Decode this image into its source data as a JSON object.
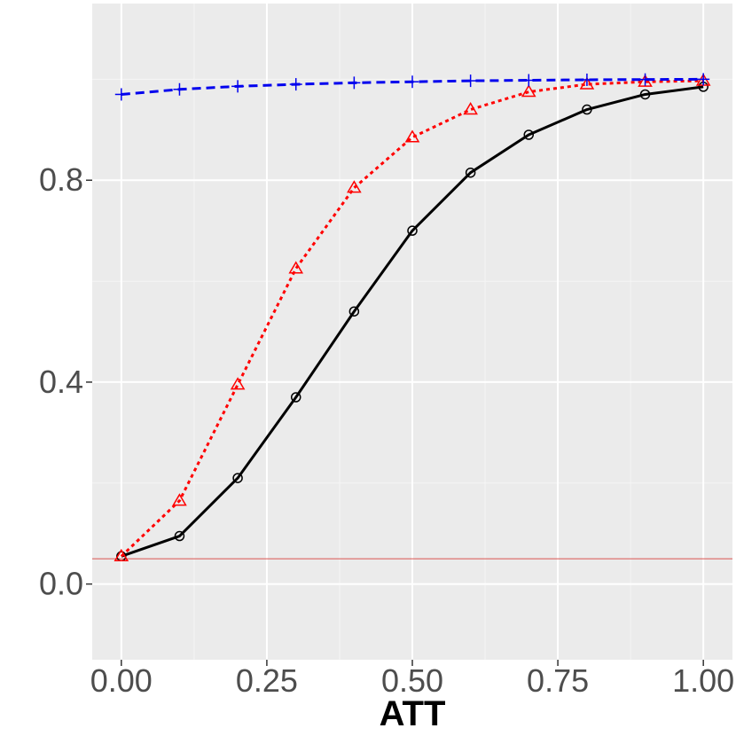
{
  "chart_data": {
    "type": "line",
    "title": "",
    "xlabel": "ATT",
    "ylabel": "",
    "xlim": [
      -0.05,
      1.05
    ],
    "ylim": [
      -0.15,
      1.15
    ],
    "x_ticks": [
      0.0,
      0.25,
      0.5,
      0.75,
      1.0
    ],
    "x_tick_labels": [
      "0.00",
      "0.25",
      "0.50",
      "0.75",
      "1.00"
    ],
    "x_minor_ticks": [
      0.125,
      0.375,
      0.625,
      0.875
    ],
    "y_ticks": [
      0.0,
      0.4,
      0.8
    ],
    "y_tick_labels": [
      "0.0",
      "0.4",
      "0.8"
    ],
    "y_minor_ticks": [
      0.2,
      0.6,
      1.0
    ],
    "grid": true,
    "legend": "none",
    "reference_line": {
      "y": 0.05,
      "color": "#d9534f"
    },
    "x": [
      0.0,
      0.1,
      0.2,
      0.3,
      0.4,
      0.5,
      0.6,
      0.7,
      0.8,
      0.9,
      1.0
    ],
    "series": [
      {
        "marker": "circle",
        "dash": "solid",
        "color": "#000000",
        "values": [
          0.055,
          0.095,
          0.21,
          0.37,
          0.54,
          0.7,
          0.815,
          0.89,
          0.94,
          0.97,
          0.985
        ]
      },
      {
        "marker": "triangle",
        "dash": "dotted",
        "color": "#ff0000",
        "values": [
          0.055,
          0.165,
          0.395,
          0.625,
          0.785,
          0.885,
          0.94,
          0.975,
          0.99,
          0.995,
          0.997
        ]
      },
      {
        "marker": "plus",
        "dash": "dashed",
        "color": "#0000ee",
        "values": [
          0.97,
          0.98,
          0.986,
          0.99,
          0.993,
          0.995,
          0.997,
          0.998,
          0.999,
          0.9995,
          1.0
        ]
      }
    ]
  }
}
